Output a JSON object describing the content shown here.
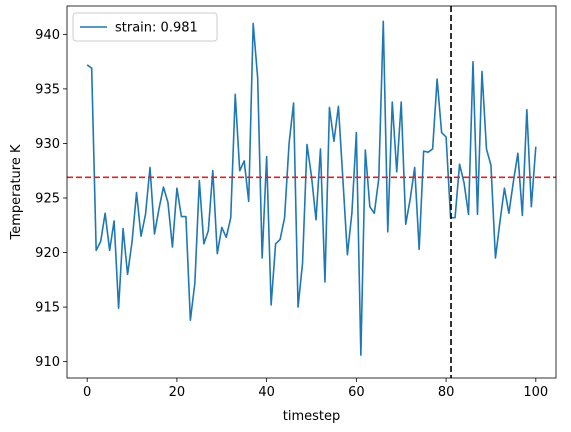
{
  "chart_data": {
    "type": "line",
    "title": "",
    "xlabel": "timestep",
    "ylabel": "Temperature K",
    "xlim": [
      -4.5,
      104.5
    ],
    "ylim": [
      908.5,
      942.6
    ],
    "xticks": [
      0,
      20,
      40,
      60,
      80,
      100
    ],
    "yticks": [
      910,
      915,
      920,
      925,
      930,
      935,
      940
    ],
    "grid": false,
    "legend": "top-left",
    "series": [
      {
        "name": "strain: 0.981",
        "color": "#1f77b4",
        "x": [
          0,
          1,
          2,
          3,
          4,
          5,
          6,
          7,
          8,
          9,
          10,
          11,
          12,
          13,
          14,
          15,
          16,
          17,
          18,
          19,
          20,
          21,
          22,
          23,
          24,
          25,
          26,
          27,
          28,
          29,
          30,
          31,
          32,
          33,
          34,
          35,
          36,
          37,
          38,
          39,
          40,
          41,
          42,
          43,
          44,
          45,
          46,
          47,
          48,
          49,
          50,
          51,
          52,
          53,
          54,
          55,
          56,
          57,
          58,
          59,
          60,
          61,
          62,
          63,
          64,
          65,
          66,
          67,
          68,
          69,
          70,
          71,
          72,
          73,
          74,
          75,
          76,
          77,
          78,
          79,
          80,
          81,
          82,
          83,
          84,
          85,
          86,
          87,
          88,
          89,
          90,
          91,
          92,
          93,
          94,
          95,
          96,
          97,
          98,
          99,
          100
        ],
        "y": [
          937.2,
          936.9,
          920.2,
          921.0,
          923.6,
          920.2,
          922.9,
          914.9,
          922.2,
          918.0,
          921.0,
          925.5,
          921.5,
          923.5,
          927.8,
          921.7,
          924.0,
          926.0,
          924.6,
          920.5,
          925.9,
          923.3,
          923.3,
          913.8,
          917.2,
          926.6,
          920.8,
          922.0,
          927.5,
          919.9,
          922.3,
          921.4,
          923.2,
          934.5,
          927.5,
          928.4,
          924.7,
          941.0,
          936.0,
          919.5,
          928.8,
          915.2,
          920.8,
          921.2,
          923.2,
          930.0,
          933.7,
          915.0,
          919.0,
          929.9,
          927.0,
          923.0,
          929.5,
          917.3,
          933.3,
          930.2,
          933.4,
          926.7,
          919.8,
          923.6,
          931.0,
          910.6,
          929.4,
          924.2,
          923.6,
          926.8,
          941.2,
          921.9,
          933.8,
          927.4,
          933.8,
          922.6,
          924.9,
          927.8,
          920.3,
          929.3,
          929.2,
          929.5,
          935.9,
          931.0,
          930.6,
          923.2,
          923.2,
          928.1,
          926.4,
          923.5,
          937.5,
          923.5,
          936.6,
          929.5,
          928.0,
          919.5,
          922.8,
          925.9,
          923.6,
          926.5,
          929.1,
          923.4,
          933.1,
          924.2,
          929.7
        ]
      }
    ],
    "hline": {
      "y": 926.9,
      "color": "#d62728",
      "style": "dashed"
    },
    "vline": {
      "x": 81.1,
      "color": "#000000",
      "style": "dashed"
    }
  }
}
